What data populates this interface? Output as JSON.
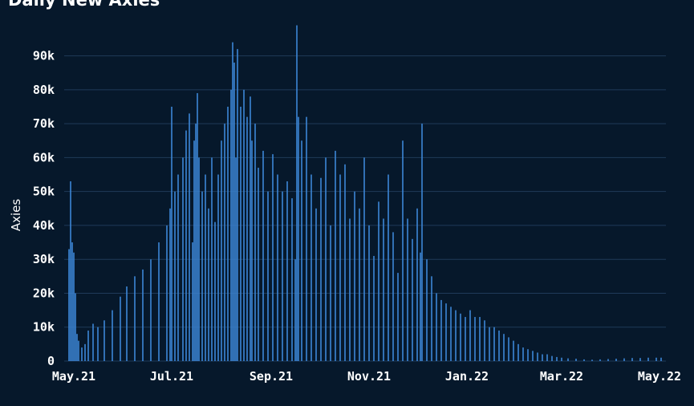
{
  "title": "Daily New Axies",
  "colors": {
    "background": "#06182b",
    "bar": "#3c86d6",
    "grid": "#1f3a59",
    "text": "#ffffff"
  },
  "chart_data": {
    "type": "bar",
    "title": "Daily New Axies",
    "xlabel": "",
    "ylabel": "Axies",
    "ylim": [
      0,
      97000
    ],
    "y_ticks": [
      0,
      10000,
      20000,
      30000,
      40000,
      50000,
      60000,
      70000,
      80000,
      90000
    ],
    "y_tick_labels": [
      "0",
      "10k",
      "20k",
      "30k",
      "40k",
      "50k",
      "60k",
      "70k",
      "80k",
      "90k"
    ],
    "x_range": [
      "2021-04-25",
      "2022-05-05"
    ],
    "x_ticks": [
      "2021-05-01",
      "2021-07-01",
      "2021-09-01",
      "2021-11-01",
      "2022-01-01",
      "2022-03-01",
      "2022-05-01"
    ],
    "x_tick_labels": [
      "May.21",
      "Jul.21",
      "Sep.21",
      "Nov.21",
      "Jan.22",
      "Mar.22",
      "May.22"
    ],
    "grid": true,
    "legend": "none",
    "series": [
      {
        "dates": [
          "2021-04-28",
          "2021-04-29",
          "2021-04-30",
          "2021-05-01",
          "2021-05-02",
          "2021-05-03",
          "2021-05-04",
          "2021-05-06",
          "2021-05-08",
          "2021-05-10",
          "2021-05-13",
          "2021-05-16",
          "2021-05-20",
          "2021-05-25",
          "2021-05-30",
          "2021-06-03",
          "2021-06-08",
          "2021-06-13",
          "2021-06-18",
          "2021-06-23",
          "2021-06-28",
          "2021-06-30",
          "2021-07-01",
          "2021-07-03",
          "2021-07-05",
          "2021-07-08",
          "2021-07-10",
          "2021-07-12",
          "2021-07-14",
          "2021-07-15",
          "2021-07-16",
          "2021-07-17",
          "2021-07-18",
          "2021-07-20",
          "2021-07-22",
          "2021-07-24",
          "2021-07-26",
          "2021-07-28",
          "2021-07-30",
          "2021-08-01",
          "2021-08-03",
          "2021-08-05",
          "2021-08-07",
          "2021-08-08",
          "2021-08-09",
          "2021-08-10",
          "2021-08-11",
          "2021-08-13",
          "2021-08-15",
          "2021-08-17",
          "2021-08-19",
          "2021-08-20",
          "2021-08-22",
          "2021-08-24",
          "2021-08-27",
          "2021-08-30",
          "2021-09-02",
          "2021-09-05",
          "2021-09-08",
          "2021-09-11",
          "2021-09-14",
          "2021-09-16",
          "2021-09-17",
          "2021-09-18",
          "2021-09-20",
          "2021-09-23",
          "2021-09-26",
          "2021-09-29",
          "2021-10-02",
          "2021-10-05",
          "2021-10-08",
          "2021-10-11",
          "2021-10-14",
          "2021-10-17",
          "2021-10-20",
          "2021-10-23",
          "2021-10-26",
          "2021-10-29",
          "2021-11-01",
          "2021-11-04",
          "2021-11-07",
          "2021-11-10",
          "2021-11-13",
          "2021-11-16",
          "2021-11-19",
          "2021-11-22",
          "2021-11-25",
          "2021-11-28",
          "2021-12-01",
          "2021-12-03",
          "2021-12-04",
          "2021-12-07",
          "2021-12-10",
          "2021-12-13",
          "2021-12-16",
          "2021-12-19",
          "2021-12-22",
          "2021-12-25",
          "2021-12-28",
          "2021-12-31",
          "2022-01-03",
          "2022-01-06",
          "2022-01-09",
          "2022-01-12",
          "2022-01-15",
          "2022-01-18",
          "2022-01-21",
          "2022-01-24",
          "2022-01-27",
          "2022-01-30",
          "2022-02-02",
          "2022-02-05",
          "2022-02-08",
          "2022-02-11",
          "2022-02-14",
          "2022-02-17",
          "2022-02-20",
          "2022-02-23",
          "2022-02-26",
          "2022-03-01",
          "2022-03-05",
          "2022-03-10",
          "2022-03-15",
          "2022-03-20",
          "2022-03-25",
          "2022-03-30",
          "2022-04-04",
          "2022-04-09",
          "2022-04-14",
          "2022-04-19",
          "2022-04-24",
          "2022-04-29",
          "2022-05-02"
        ],
        "values": [
          33000,
          53000,
          35000,
          32000,
          20000,
          8000,
          6000,
          4000,
          5000,
          9000,
          11000,
          10000,
          12000,
          15000,
          19000,
          22000,
          25000,
          27000,
          30000,
          35000,
          40000,
          45000,
          75000,
          50000,
          55000,
          60000,
          68000,
          73000,
          35000,
          65000,
          70000,
          79000,
          60000,
          50000,
          55000,
          45000,
          60000,
          41000,
          55000,
          65000,
          70000,
          75000,
          80000,
          94000,
          88000,
          60000,
          92000,
          75000,
          80000,
          72000,
          78000,
          65000,
          70000,
          57000,
          62000,
          50000,
          61000,
          55000,
          50000,
          53000,
          48000,
          30000,
          99000,
          72000,
          65000,
          72000,
          55000,
          45000,
          54000,
          60000,
          40000,
          62000,
          55000,
          58000,
          42000,
          50000,
          45000,
          60000,
          40000,
          31000,
          47000,
          42000,
          55000,
          38000,
          26000,
          65000,
          42000,
          36000,
          45000,
          32000,
          70000,
          30000,
          25000,
          20000,
          18000,
          17000,
          16000,
          15000,
          14000,
          13000,
          15000,
          13000,
          13000,
          12000,
          10000,
          10000,
          9000,
          8000,
          7000,
          6000,
          5000,
          4000,
          3500,
          3000,
          2500,
          2000,
          2000,
          1500,
          1200,
          1000,
          800,
          700,
          500,
          400,
          500,
          600,
          700,
          800,
          900,
          900,
          1000,
          1000,
          1000
        ]
      }
    ]
  }
}
